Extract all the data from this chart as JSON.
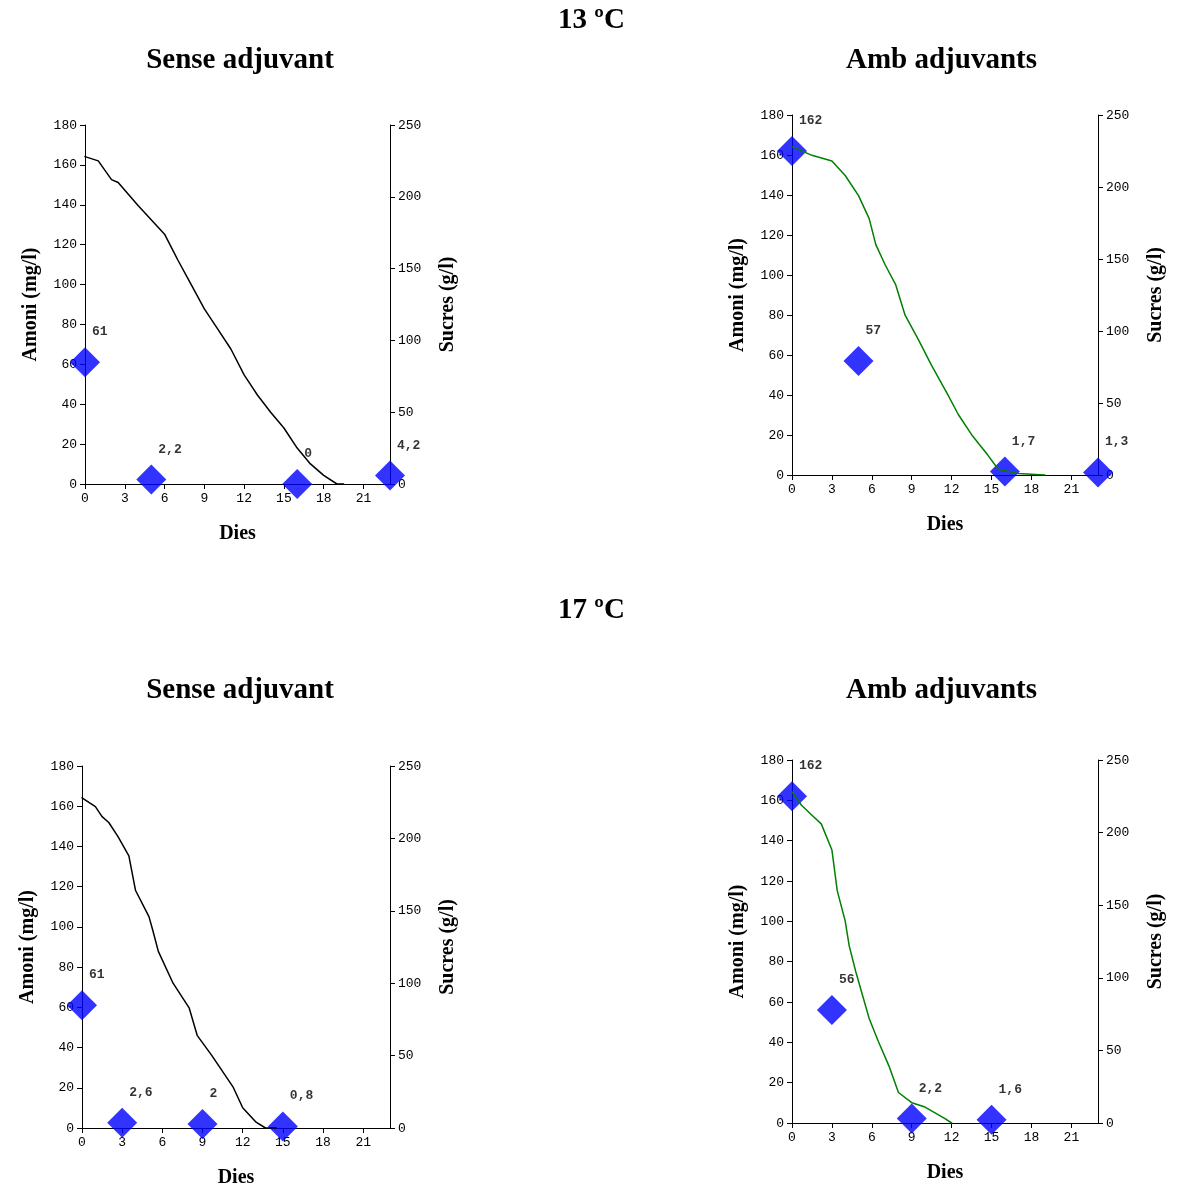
{
  "chart_data": [
    {
      "type": "scatter",
      "title": "Sense adjuvant",
      "annotations": [
        "13 ºC"
      ],
      "xlabel": "Dies",
      "ylabel": "Amoni (mg/l)",
      "y2label": "Sucres (g/l)",
      "xlim": [
        0,
        23
      ],
      "xticks": [
        0,
        3,
        6,
        9,
        12,
        15,
        18,
        21
      ],
      "ylim": [
        0,
        180
      ],
      "yticks": [
        0,
        20,
        40,
        60,
        80,
        100,
        120,
        140,
        160,
        180
      ],
      "y2lim": [
        0,
        250
      ],
      "y2ticks": [
        0,
        50,
        100,
        150,
        200,
        250
      ],
      "marker": "diamond",
      "series": [
        {
          "color": "#0000ff",
          "x": [
            0,
            5,
            16,
            23
          ],
          "values": [
            61,
            2.2,
            0,
            4.2
          ],
          "value_labels": [
            "61",
            "2,2",
            "0",
            "4,2"
          ]
        },
        {
          "type": "line",
          "axis": "y2",
          "marker": "none",
          "color": "#000000",
          "x": [
            0,
            1,
            2,
            2.5,
            4,
            6,
            7,
            8,
            9,
            10,
            11,
            12,
            13,
            14,
            15,
            16,
            17,
            18,
            19,
            19.5
          ],
          "values": [
            228,
            225,
            212,
            210,
            194,
            174,
            156,
            139,
            122,
            108,
            94,
            76,
            62,
            50,
            39,
            25,
            14,
            6,
            0,
            0
          ]
        }
      ]
    },
    {
      "type": "scatter",
      "title": "Amb adjuvants",
      "xlabel": "Dies",
      "ylabel": "Amoni (mg/l)",
      "y2label": "Sucres (g/l)",
      "xlim": [
        0,
        23
      ],
      "xticks": [
        0,
        3,
        6,
        9,
        12,
        15,
        18,
        21
      ],
      "ylim": [
        0,
        180
      ],
      "yticks": [
        0,
        20,
        40,
        60,
        80,
        100,
        120,
        140,
        160,
        180
      ],
      "y2lim": [
        0,
        250
      ],
      "y2ticks": [
        0,
        50,
        100,
        150,
        200,
        250
      ],
      "marker": "diamond",
      "series": [
        {
          "color": "#0000ff",
          "x": [
            0,
            5,
            16,
            23
          ],
          "values": [
            162,
            57,
            1.7,
            1.3
          ],
          "value_labels": [
            "162",
            "57",
            "1,7",
            "1,3"
          ]
        },
        {
          "type": "line",
          "axis": "y2",
          "marker": "none",
          "color": "#008000",
          "x": [
            0,
            1.5,
            3,
            4,
            5,
            5.8,
            6.3,
            7,
            7.8,
            8.5,
            9.5,
            10.5,
            11.7,
            12.5,
            13.5,
            14.7,
            15.5,
            17,
            19
          ],
          "values": [
            228,
            222,
            218,
            208,
            194,
            178,
            160,
            146,
            132,
            111,
            94,
            76,
            56,
            42,
            28,
            14,
            4,
            1,
            0
          ]
        }
      ]
    },
    {
      "type": "scatter",
      "title": "Sense adjuvant",
      "annotations": [
        "17 ºC"
      ],
      "xlabel": "Dies",
      "ylabel": "Amoni (mg/l)",
      "y2label": "Sucres (g/l)",
      "xlim": [
        0,
        23
      ],
      "xticks": [
        0,
        3,
        6,
        9,
        12,
        15,
        18,
        21
      ],
      "ylim": [
        0,
        180
      ],
      "yticks": [
        0,
        20,
        40,
        60,
        80,
        100,
        120,
        140,
        160,
        180
      ],
      "y2lim": [
        0,
        250
      ],
      "y2ticks": [
        0,
        50,
        100,
        150,
        200,
        250
      ],
      "marker": "diamond",
      "series": [
        {
          "color": "#0000ff",
          "x": [
            0,
            3,
            9,
            15
          ],
          "values": [
            61,
            2.6,
            2,
            0.8
          ],
          "value_labels": [
            "61",
            "2,6",
            "2",
            "0,8"
          ]
        },
        {
          "type": "line",
          "axis": "y2",
          "marker": "none",
          "color": "#000000",
          "x": [
            0,
            1,
            1.5,
            2,
            2.7,
            3.5,
            4,
            5,
            5.3,
            5.7,
            6.8,
            8,
            8.6,
            9.7,
            11.3,
            12,
            13,
            13.7,
            14.5
          ],
          "values": [
            228,
            222,
            215,
            211,
            201,
            188,
            164,
            146,
            136,
            122,
            100,
            83,
            64,
            50,
            28,
            14,
            4,
            0,
            0
          ]
        }
      ]
    },
    {
      "type": "scatter",
      "title": "Amb adjuvants",
      "xlabel": "Dies",
      "ylabel": "Amoni (mg/l)",
      "y2label": "Sucres (g/l)",
      "xlim": [
        0,
        23
      ],
      "xticks": [
        0,
        3,
        6,
        9,
        12,
        15,
        18,
        21
      ],
      "ylim": [
        0,
        180
      ],
      "yticks": [
        0,
        20,
        40,
        60,
        80,
        100,
        120,
        140,
        160,
        180
      ],
      "y2lim": [
        0,
        250
      ],
      "y2ticks": [
        0,
        50,
        100,
        150,
        200,
        250
      ],
      "marker": "diamond",
      "series": [
        {
          "color": "#0000ff",
          "x": [
            0,
            3,
            9,
            15
          ],
          "values": [
            162,
            56,
            2.2,
            1.6
          ],
          "value_labels": [
            "162",
            "56",
            "2,2",
            "1,6"
          ]
        },
        {
          "type": "line",
          "axis": "y2",
          "marker": "none",
          "color": "#008000",
          "x": [
            0,
            0.7,
            1.5,
            2.2,
            3,
            3.4,
            4,
            4.3,
            4.8,
            5.8,
            6.5,
            7.3,
            8,
            9,
            10,
            11.5,
            12
          ],
          "values": [
            228,
            219,
            212,
            206,
            188,
            160,
            139,
            122,
            104,
            72,
            56,
            39,
            21,
            14,
            11,
            3,
            0
          ]
        }
      ]
    }
  ]
}
